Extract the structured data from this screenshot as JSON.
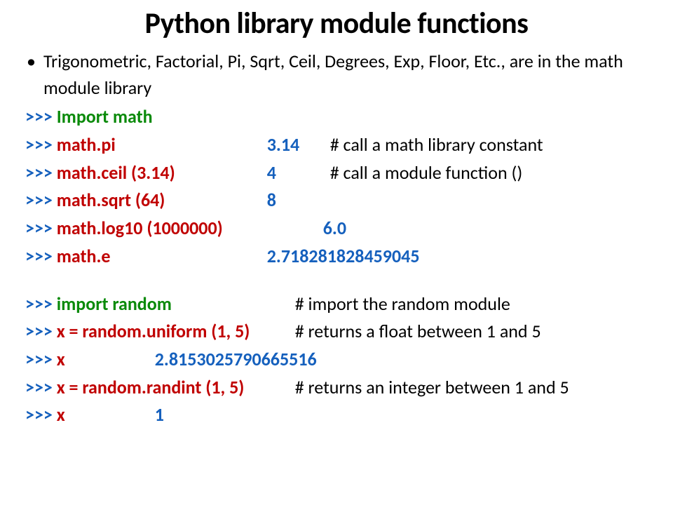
{
  "title": "Python library module functions",
  "bullet": "Trigonometric, Factorial, Pi, Sqrt, Ceil, Degrees, Exp, Floor, Etc., are in the math module library",
  "prompt": ">>>",
  "lines": [
    {
      "expr": "Import math",
      "expr_color": "green",
      "expr_width": 300,
      "result": "",
      "comment": ""
    },
    {
      "expr": "math.pi",
      "expr_color": "red",
      "expr_width": 300,
      "result": "3.14",
      "result_width": 90,
      "comment": "# call a math library constant"
    },
    {
      "expr": "math.ceil (3.14)",
      "expr_color": "red",
      "expr_width": 300,
      "result": "4",
      "result_width": 90,
      "comment": "# call a module function ()"
    },
    {
      "expr": "math.sqrt (64)",
      "expr_color": "red",
      "expr_width": 300,
      "result": "8",
      "result_width": 90,
      "comment": ""
    },
    {
      "expr": "math.log10 (1000000)",
      "expr_color": "red",
      "expr_width": 380,
      "result": "6.0",
      "result_width": 90,
      "comment": ""
    },
    {
      "expr": "math.e",
      "expr_color": "red",
      "expr_width": 300,
      "result": "2.718281828459045",
      "result_width": 270,
      "comment": ""
    }
  ],
  "lines2": [
    {
      "expr": "import random",
      "expr_color": "green",
      "expr_width": 340,
      "result": "",
      "comment": "# import the random module"
    },
    {
      "expr": "x = random.uniform (1, 5)",
      "expr_color": "red",
      "expr_width": 340,
      "result": "",
      "comment": "# returns a float between 1 and 5"
    },
    {
      "expr": "x",
      "expr_color": "red",
      "expr_width": 140,
      "result": "2.8153025790665516",
      "result_width": 300,
      "comment": ""
    },
    {
      "expr": "x = random.randint (1, 5)",
      "expr_color": "red",
      "expr_width": 340,
      "result": "",
      "comment": "# returns an integer between 1 and 5"
    },
    {
      "expr": "x",
      "expr_color": "red",
      "expr_width": 140,
      "result": "1",
      "result_width": 40,
      "comment": ""
    }
  ]
}
